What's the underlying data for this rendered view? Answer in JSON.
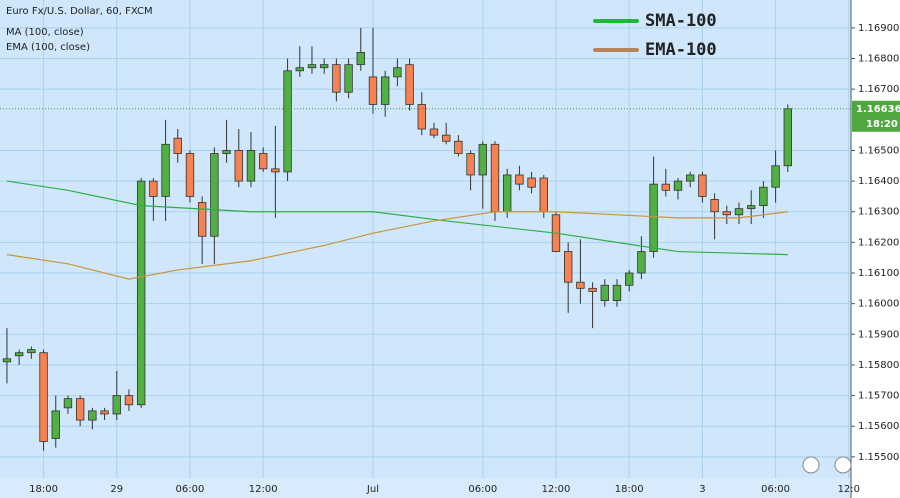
{
  "chart_data": {
    "type": "candlestick",
    "title": "Euro Fx/U.S. Dollar, 60, FXCM",
    "indicator_labels": [
      "MA (100, close)",
      "EMA (100, close)"
    ],
    "open": [
      1.1581,
      1.1583,
      1.1584,
      1.1584,
      1.1556,
      1.1566,
      1.1569,
      1.1562,
      1.1565,
      1.1564,
      1.157,
      1.1567,
      1.164,
      1.1635,
      1.1654,
      1.1649,
      1.1633,
      1.1622,
      1.1649,
      1.165,
      1.164,
      1.1649,
      1.1644,
      1.1643,
      1.1676,
      1.1677,
      1.1677,
      1.1678,
      1.1669,
      1.1678,
      1.1674,
      1.1665,
      1.1674,
      1.1678,
      1.1665,
      1.1657,
      1.1655,
      1.1653,
      1.1649,
      1.1642,
      1.1652,
      1.163,
      1.1642,
      1.1641,
      1.1641,
      1.1629,
      1.1617,
      1.1607,
      1.1605,
      1.1601,
      1.1601,
      1.1606,
      1.161,
      1.1617,
      1.1639,
      1.1637,
      1.164,
      1.1642,
      1.1634,
      1.163,
      1.1629,
      1.1631,
      1.1632,
      1.1638,
      1.1645
    ],
    "high": [
      1.1592,
      1.1585,
      1.1586,
      1.1585,
      1.157,
      1.157,
      1.157,
      1.1566,
      1.1566,
      1.1578,
      1.1572,
      1.1641,
      1.1641,
      1.166,
      1.1657,
      1.165,
      1.1635,
      1.1651,
      1.166,
      1.1657,
      1.1656,
      1.1651,
      1.1658,
      1.168,
      1.1684,
      1.1684,
      1.168,
      1.168,
      1.168,
      1.169,
      1.169,
      1.1676,
      1.168,
      1.168,
      1.1669,
      1.1659,
      1.1659,
      1.1655,
      1.165,
      1.1653,
      1.1653,
      1.1644,
      1.1645,
      1.1643,
      1.1642,
      1.163,
      1.162,
      1.1621,
      1.1607,
      1.1608,
      1.1608,
      1.1611,
      1.1622,
      1.1648,
      1.1644,
      1.1641,
      1.1643,
      1.1643,
      1.1636,
      1.1632,
      1.1633,
      1.1637,
      1.164,
      1.165,
      1.1665
    ],
    "low": [
      1.1574,
      1.158,
      1.1582,
      1.1552,
      1.1553,
      1.1564,
      1.156,
      1.1559,
      1.1562,
      1.1562,
      1.1565,
      1.1566,
      1.1627,
      1.1627,
      1.1646,
      1.1633,
      1.1613,
      1.1613,
      1.1646,
      1.1638,
      1.1638,
      1.1643,
      1.1628,
      1.164,
      1.1674,
      1.1675,
      1.1675,
      1.1666,
      1.1667,
      1.1676,
      1.1662,
      1.1661,
      1.1671,
      1.1663,
      1.1655,
      1.1654,
      1.1652,
      1.1648,
      1.1637,
      1.1631,
      1.1627,
      1.1628,
      1.1637,
      1.1636,
      1.1628,
      1.1617,
      1.1597,
      1.16,
      1.1592,
      1.1599,
      1.1599,
      1.1604,
      1.1608,
      1.1615,
      1.1635,
      1.1634,
      1.1638,
      1.1633,
      1.1621,
      1.1626,
      1.1626,
      1.1626,
      1.1628,
      1.1633,
      1.1643
    ],
    "close": [
      1.1582,
      1.1584,
      1.1585,
      1.1555,
      1.1565,
      1.1569,
      1.1562,
      1.1565,
      1.1564,
      1.157,
      1.1567,
      1.164,
      1.1635,
      1.1652,
      1.1649,
      1.1635,
      1.1622,
      1.1649,
      1.165,
      1.164,
      1.165,
      1.1644,
      1.1643,
      1.1676,
      1.1677,
      1.1678,
      1.1678,
      1.1669,
      1.1678,
      1.1682,
      1.1665,
      1.1674,
      1.1677,
      1.1665,
      1.1657,
      1.1655,
      1.1653,
      1.1649,
      1.1642,
      1.1652,
      1.163,
      1.1642,
      1.1639,
      1.1638,
      1.163,
      1.1617,
      1.1607,
      1.1605,
      1.1604,
      1.1606,
      1.1606,
      1.161,
      1.1617,
      1.1639,
      1.1637,
      1.164,
      1.1642,
      1.1635,
      1.163,
      1.1629,
      1.1631,
      1.1632,
      1.1638,
      1.1645,
      1.16636
    ],
    "up_color": "#52b043",
    "down_color": "#f58250",
    "lines": [
      {
        "name": "SMA-100",
        "color": "#2fae45",
        "x": [
          0,
          5,
          11,
          20,
          30,
          36,
          45,
          55,
          64
        ],
        "values": [
          1.164,
          1.1637,
          1.1632,
          1.163,
          1.163,
          1.1627,
          1.1623,
          1.1617,
          1.1616
        ]
      },
      {
        "name": "EMA-100",
        "color": "#c8963c",
        "x": [
          0,
          5,
          10,
          14,
          20,
          26,
          30,
          35,
          40,
          45,
          50,
          55,
          60,
          64
        ],
        "values": [
          1.1616,
          1.1613,
          1.1608,
          1.1611,
          1.1614,
          1.1619,
          1.1623,
          1.1627,
          1.163,
          1.163,
          1.1629,
          1.1628,
          1.1628,
          1.163
        ]
      }
    ],
    "legend_colors": [
      "#22b53c",
      "#b9835a"
    ],
    "last_price": {
      "value": 1.16636,
      "label": "1.16636"
    },
    "time_to_close": "18:20",
    "xlim": [
      -0.57,
      69.18
    ],
    "xticks": [
      {
        "value": 3,
        "label": "18:00"
      },
      {
        "value": 9,
        "label": "29"
      },
      {
        "value": 15,
        "label": "06:00"
      },
      {
        "value": 21,
        "label": "12:00"
      },
      {
        "value": 30,
        "label": "Jul"
      },
      {
        "value": 39,
        "label": "06:00"
      },
      {
        "value": 45,
        "label": "12:00"
      },
      {
        "value": 51,
        "label": "18:00"
      },
      {
        "value": 57,
        "label": "3"
      },
      {
        "value": 63,
        "label": "06:00"
      },
      {
        "value": 69,
        "label": "12:0"
      }
    ],
    "ylim": [
      1.15431,
      1.16991
    ],
    "yticks": [
      {
        "value": 1.155,
        "label": "1.15500"
      },
      {
        "value": 1.156,
        "label": "1.15600"
      },
      {
        "value": 1.157,
        "label": "1.15700"
      },
      {
        "value": 1.158,
        "label": "1.15800"
      },
      {
        "value": 1.159,
        "label": "1.15900"
      },
      {
        "value": 1.16,
        "label": "1.16000"
      },
      {
        "value": 1.161,
        "label": "1.16100"
      },
      {
        "value": 1.162,
        "label": "1.16200"
      },
      {
        "value": 1.163,
        "label": "1.16300"
      },
      {
        "value": 1.164,
        "label": "1.16400"
      },
      {
        "value": 1.165,
        "label": "1.16500"
      },
      {
        "value": 1.167,
        "label": "1.16700"
      },
      {
        "value": 1.168,
        "label": "1.16800"
      },
      {
        "value": 1.169,
        "label": "1.16900"
      }
    ],
    "grid": true
  }
}
